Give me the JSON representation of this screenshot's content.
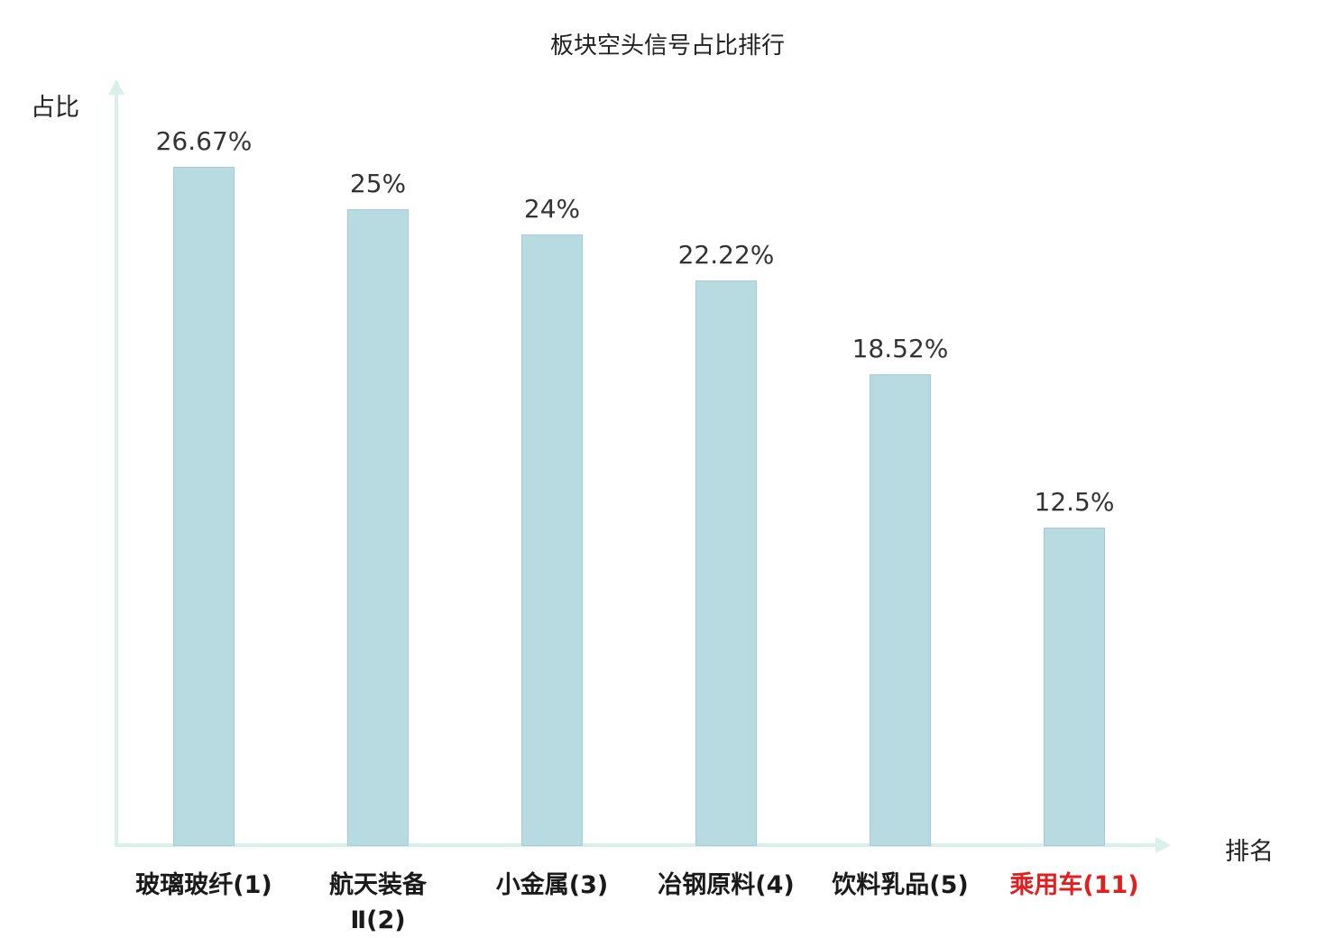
{
  "title": "板块空头信号占比排行",
  "axis": {
    "y_label": "占比",
    "x_label": "排名"
  },
  "colors": {
    "bar_fill": "#b7dbe0",
    "bar_border": "#a0cdd5",
    "axis_line": "#d9efe9",
    "value_text": "#333333",
    "category_text": "#1a1a1a",
    "highlight_text": "#e02020"
  },
  "chart_data": {
    "type": "bar",
    "title": "板块空头信号占比排行",
    "xlabel": "排名",
    "ylabel": "占比",
    "grid": false,
    "legend_position": "none",
    "ylim": [
      0,
      29
    ],
    "categories": [
      "玻璃玻纤(1)",
      "航天装备Ⅱ(2)",
      "小金属(3)",
      "冶钢原料(4)",
      "饮料乳品(5)",
      "乘用车(11)"
    ],
    "values": [
      26.67,
      25,
      24,
      22.22,
      18.52,
      12.5
    ],
    "points": [
      {
        "label": "玻璃玻纤(1)",
        "value": 26.67,
        "value_label": "26.67%",
        "highlight": false
      },
      {
        "label": "航天装备\nⅡ(2)",
        "value": 25,
        "value_label": "25%",
        "highlight": false
      },
      {
        "label": "小金属(3)",
        "value": 24,
        "value_label": "24%",
        "highlight": false
      },
      {
        "label": "冶钢原料(4)",
        "value": 22.22,
        "value_label": "22.22%",
        "highlight": false
      },
      {
        "label": "饮料乳品(5)",
        "value": 18.52,
        "value_label": "18.52%",
        "highlight": false
      },
      {
        "label": "乘用车(11)",
        "value": 12.5,
        "value_label": "12.5%",
        "highlight": true
      }
    ]
  }
}
